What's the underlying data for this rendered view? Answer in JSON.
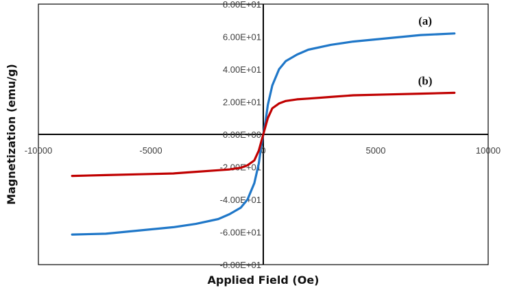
{
  "chart_data": {
    "type": "line",
    "title": "",
    "xlabel": "Applied Field (Oe)",
    "ylabel": "Magnetization (emu/g)",
    "xlim": [
      -10000,
      10000
    ],
    "ylim": [
      -80,
      80
    ],
    "x_ticks": [
      {
        "value": -10000,
        "label": "-10000"
      },
      {
        "value": -5000,
        "label": "-5000"
      },
      {
        "value": 0,
        "label": "0"
      },
      {
        "value": 5000,
        "label": "5000"
      },
      {
        "value": 10000,
        "label": "10000"
      }
    ],
    "y_ticks": [
      {
        "value": 80,
        "label": "8.00E+01"
      },
      {
        "value": 60,
        "label": "6.00E+01"
      },
      {
        "value": 40,
        "label": "4.00E+01"
      },
      {
        "value": 20,
        "label": "2.00E+01"
      },
      {
        "value": 0,
        "label": "0.00E+00"
      },
      {
        "value": -20,
        "label": "-2.00E+01"
      },
      {
        "value": -40,
        "label": "-4.00E+01"
      },
      {
        "value": -60,
        "label": "-6.00E+01"
      },
      {
        "value": -80,
        "label": "-8.00E+01"
      }
    ],
    "grid": false,
    "series": [
      {
        "name": "(a)",
        "color": "#1f77c8",
        "x": [
          -8500,
          -7000,
          -5500,
          -4000,
          -3000,
          -2000,
          -1500,
          -1000,
          -700,
          -400,
          -200,
          -100,
          0,
          100,
          200,
          400,
          700,
          1000,
          1500,
          2000,
          3000,
          4000,
          5500,
          7000,
          8500
        ],
        "y": [
          -61.5,
          -61,
          -59,
          -57,
          -55,
          -52,
          -49,
          -45,
          -40,
          -30,
          -18,
          -8,
          0,
          8,
          18,
          30,
          40,
          45,
          49,
          52,
          55,
          57,
          59,
          61,
          62
        ]
      },
      {
        "name": "(b)",
        "color": "#c00000",
        "x": [
          -8500,
          -7000,
          -5500,
          -4000,
          -3000,
          -2000,
          -1500,
          -1000,
          -700,
          -400,
          -200,
          -100,
          0,
          100,
          200,
          400,
          700,
          1000,
          1500,
          2000,
          3000,
          4000,
          5500,
          7000,
          8500
        ],
        "y": [
          -25.5,
          -25,
          -24.5,
          -24,
          -23,
          -22,
          -21.5,
          -20.5,
          -19,
          -16,
          -10,
          -5,
          0,
          5,
          10,
          16,
          19,
          20.5,
          21.5,
          22,
          23,
          24,
          24.5,
          25,
          25.5
        ]
      }
    ],
    "annotations": [
      {
        "text": "(a)",
        "x": 7200,
        "y": 70
      },
      {
        "text": "(b)",
        "x": 7200,
        "y": 33
      }
    ]
  }
}
